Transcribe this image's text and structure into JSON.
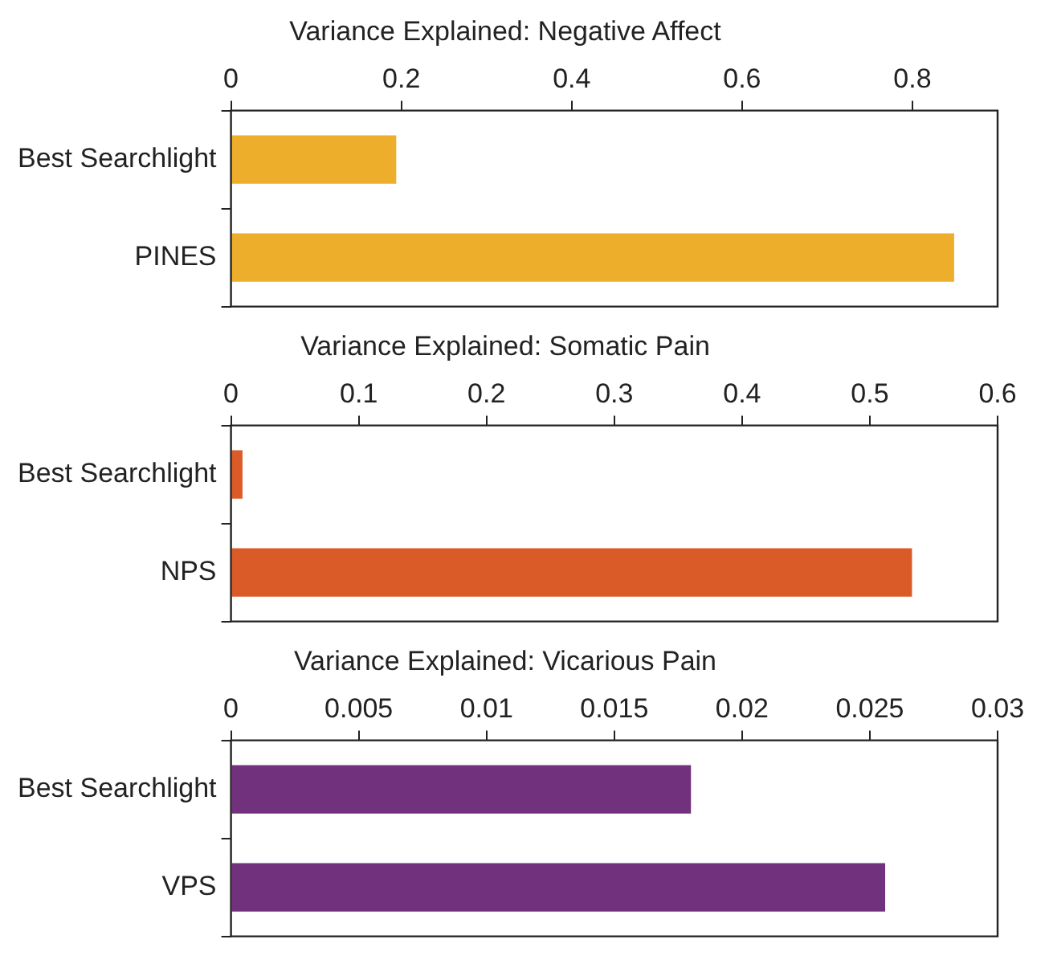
{
  "chart_data": [
    {
      "type": "bar",
      "orientation": "horizontal",
      "title": "Variance Explained: Negative Affect",
      "categories": [
        "Best Searchlight",
        "PINES"
      ],
      "values": [
        0.194,
        0.849
      ],
      "color": "#ecae2b",
      "xlim": [
        0,
        0.9
      ],
      "xticks": [
        0,
        0.2,
        0.4,
        0.6,
        0.8
      ]
    },
    {
      "type": "bar",
      "orientation": "horizontal",
      "title": "Variance Explained: Somatic Pain",
      "categories": [
        "Best Searchlight",
        "NPS"
      ],
      "values": [
        0.009,
        0.533
      ],
      "color": "#da5b27",
      "xlim": [
        0,
        0.6
      ],
      "xticks": [
        0,
        0.1,
        0.2,
        0.3,
        0.4,
        0.5,
        0.6
      ]
    },
    {
      "type": "bar",
      "orientation": "horizontal",
      "title": "Variance Explained: Vicarious Pain",
      "categories": [
        "Best Searchlight",
        "VPS"
      ],
      "values": [
        0.018,
        0.0256
      ],
      "color": "#71317c",
      "xlim": [
        0,
        0.03
      ],
      "xticks": [
        0,
        0.005,
        0.01,
        0.015,
        0.02,
        0.025,
        0.03
      ]
    }
  ]
}
